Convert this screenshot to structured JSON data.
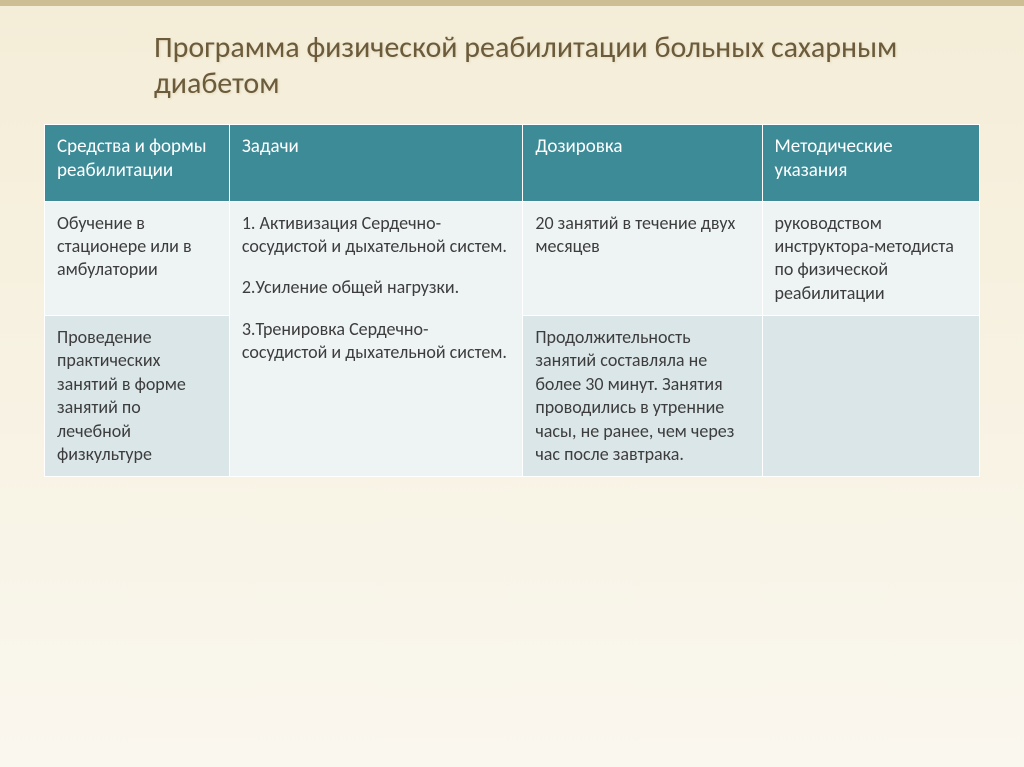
{
  "title": "Программа физической реабилитации больных сахарным диабетом",
  "columns": [
    "Средства и формы реабилитации",
    "Задачи",
    "Дозировка",
    "Методические указания"
  ],
  "row1": {
    "means": "Обучение в стационере или в амбулатории",
    "task1": "1. Активизация Сердечно-сосудистой и дыхательной систем.",
    "task2": "2.Усиление общей нагрузки.",
    "task3": "3.Тренировка Сердечно-сосудистой и дыхательной систем.",
    "dosage": "20 занятий  в течение двух месяцев",
    "guidance": "руководством инструктора-методиста по физической реабилитации"
  },
  "row2": {
    "means": "Проведение практических занятий  в форме занятий по лечебной физкультуре",
    "dosage": "Продолжительность занятий составляла не более 30 минут. Занятия проводились в утренние часы, не ранее, чем через час после завтрака.",
    "guidance": ""
  },
  "style": {
    "type": "table",
    "table_header_bg": "#3c8b97",
    "table_header_text": "#ffffff",
    "row_bg_1": "#eef3f4",
    "row_bg_2": "#dbe6e8",
    "cell_text_color": "#3d3d3d",
    "title_color": "#6b5b3a",
    "slide_bg_top": "#f4edd8",
    "slide_bg_bottom": "#faf7ef",
    "title_fontsize": 30,
    "header_fontsize": 19,
    "cell_fontsize": 18,
    "column_widths_pct": [
      17,
      27,
      22,
      20
    ],
    "border_color": "#ffffff"
  }
}
